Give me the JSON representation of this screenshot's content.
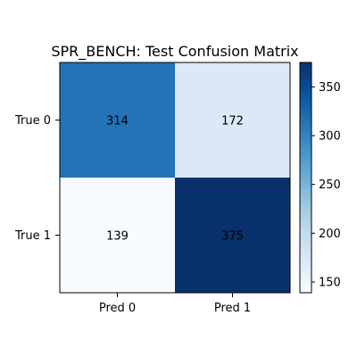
{
  "chart_data": {
    "type": "heatmap",
    "title": "SPR_BENCH: Test Confusion Matrix",
    "x_tick_labels": [
      "Pred 0",
      "Pred 1"
    ],
    "y_tick_labels": [
      "True 0",
      "True 1"
    ],
    "matrix": [
      [
        314,
        172
      ],
      [
        139,
        375
      ]
    ],
    "colormap": "Blues",
    "colorbar": {
      "range": [
        139,
        375
      ],
      "ticks": [
        150,
        200,
        250,
        300,
        350
      ],
      "tick_labels": [
        "150",
        "200",
        "250",
        "300",
        "350"
      ]
    },
    "cell_text_colors": {
      "dark_bg": "#000000",
      "light_bg": "#000000"
    },
    "colors": {
      "low": "#f7fbff",
      "high": "#08306b"
    }
  }
}
